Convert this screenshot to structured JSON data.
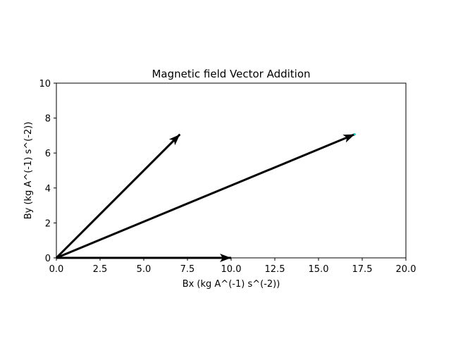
{
  "chart_data": {
    "type": "vector",
    "title": "Magnetic field Vector Addition",
    "xlabel": "Bx (kg A^(-1) s^(-2))",
    "ylabel": "By (kg A^(-1) s^(-2))",
    "xlim": [
      0,
      20
    ],
    "ylim": [
      0,
      10
    ],
    "xticks": [
      0,
      2.5,
      5,
      7.5,
      10,
      12.5,
      15,
      17.5,
      20
    ],
    "xtick_labels": [
      "0.0",
      "2.5",
      "5.0",
      "7.5",
      "10.0",
      "12.5",
      "15.0",
      "17.5",
      "20.0"
    ],
    "yticks": [
      0,
      2,
      4,
      6,
      8,
      10
    ],
    "ytick_labels": [
      "0",
      "2",
      "4",
      "6",
      "8",
      "10"
    ],
    "grid": false,
    "vectors": [
      {
        "x0": 0,
        "y0": 0,
        "x1": 10,
        "y1": 0,
        "color": "#000000"
      },
      {
        "x0": 0,
        "y0": 0,
        "x1": 7.07,
        "y1": 7.07,
        "color": "#000000"
      },
      {
        "x0": 0,
        "y0": 0,
        "x1": 17.07,
        "y1": 7.07,
        "color": "#000000"
      }
    ],
    "points": [
      {
        "x": 17.07,
        "y": 7.07,
        "color": "#00d0d0"
      }
    ]
  }
}
